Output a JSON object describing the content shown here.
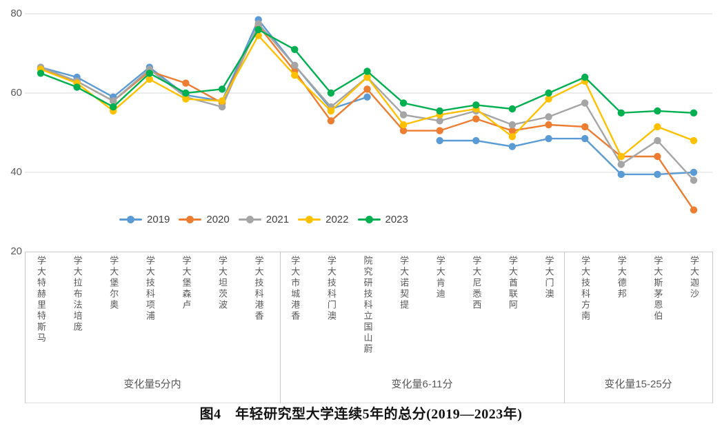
{
  "figure": {
    "caption": "图4　年轻研究型大学连续5年的总分(2019—2023年)"
  },
  "chart_data": {
    "type": "line",
    "figure_label": "图4",
    "title": "年轻研究型大学连续5年的总分(2019—2023年)",
    "categories": [
      "马斯特里赫特大学",
      "庞培法布拉大学",
      "奥尔堡大学",
      "浦项科技大学",
      "卢森堡大学",
      "波茨坦大学",
      "香港科技大学",
      "香港城市大学",
      "澳门科技大学",
      "蔚山国立科技研究院",
      "提契诺大学",
      "迪肯大学",
      "西悉尼大学",
      "阿联酋大学",
      "澳门大学",
      "南方科技大学",
      "邦德大学",
      "伯恩茅斯大学",
      "沙迦大学"
    ],
    "series": [
      {
        "name": "2019",
        "color": "#5B9BD5",
        "values": [
          66.5,
          64,
          59,
          66.5,
          59.5,
          58,
          78.5,
          67,
          56,
          59,
          null,
          48,
          48,
          46.5,
          48.5,
          48.5,
          39.5,
          39.5,
          40
        ]
      },
      {
        "name": "2020",
        "color": "#ED7D31",
        "values": [
          66,
          63,
          58,
          65.5,
          62.5,
          57.5,
          77,
          65.5,
          53,
          61,
          50.5,
          50.5,
          53.5,
          50.5,
          52,
          51.5,
          44,
          44,
          30.5
        ]
      },
      {
        "name": "2021",
        "color": "#A5A5A5",
        "values": [
          66.5,
          63,
          58,
          66,
          59,
          56.5,
          77.5,
          67,
          56.5,
          64,
          54.5,
          53,
          55.5,
          52,
          54,
          57.5,
          42,
          48,
          38
        ]
      },
      {
        "name": "2022",
        "color": "#FFC000",
        "values": [
          66,
          62.5,
          55.5,
          63.5,
          58.5,
          58,
          74.5,
          64.5,
          55.5,
          64,
          52,
          54.5,
          56,
          49,
          58.5,
          63,
          44,
          51.5,
          48
        ]
      },
      {
        "name": "2023",
        "color": "#00B050",
        "values": [
          65,
          61.5,
          56.5,
          65,
          60,
          61,
          76,
          71,
          60,
          65.5,
          57.5,
          55.5,
          57,
          56,
          60,
          64,
          55,
          55.5,
          55
        ]
      }
    ],
    "ylim": [
      20,
      80
    ],
    "y_ticks": [
      20,
      40,
      60,
      80
    ],
    "grid": true,
    "legend_position": "inside-bottom-left",
    "group_bands": [
      {
        "label": "变化量5分内",
        "count": 7
      },
      {
        "label": "变化量6-11分",
        "count": 8
      },
      {
        "label": "变化量15-25分",
        "count": 4
      }
    ]
  }
}
